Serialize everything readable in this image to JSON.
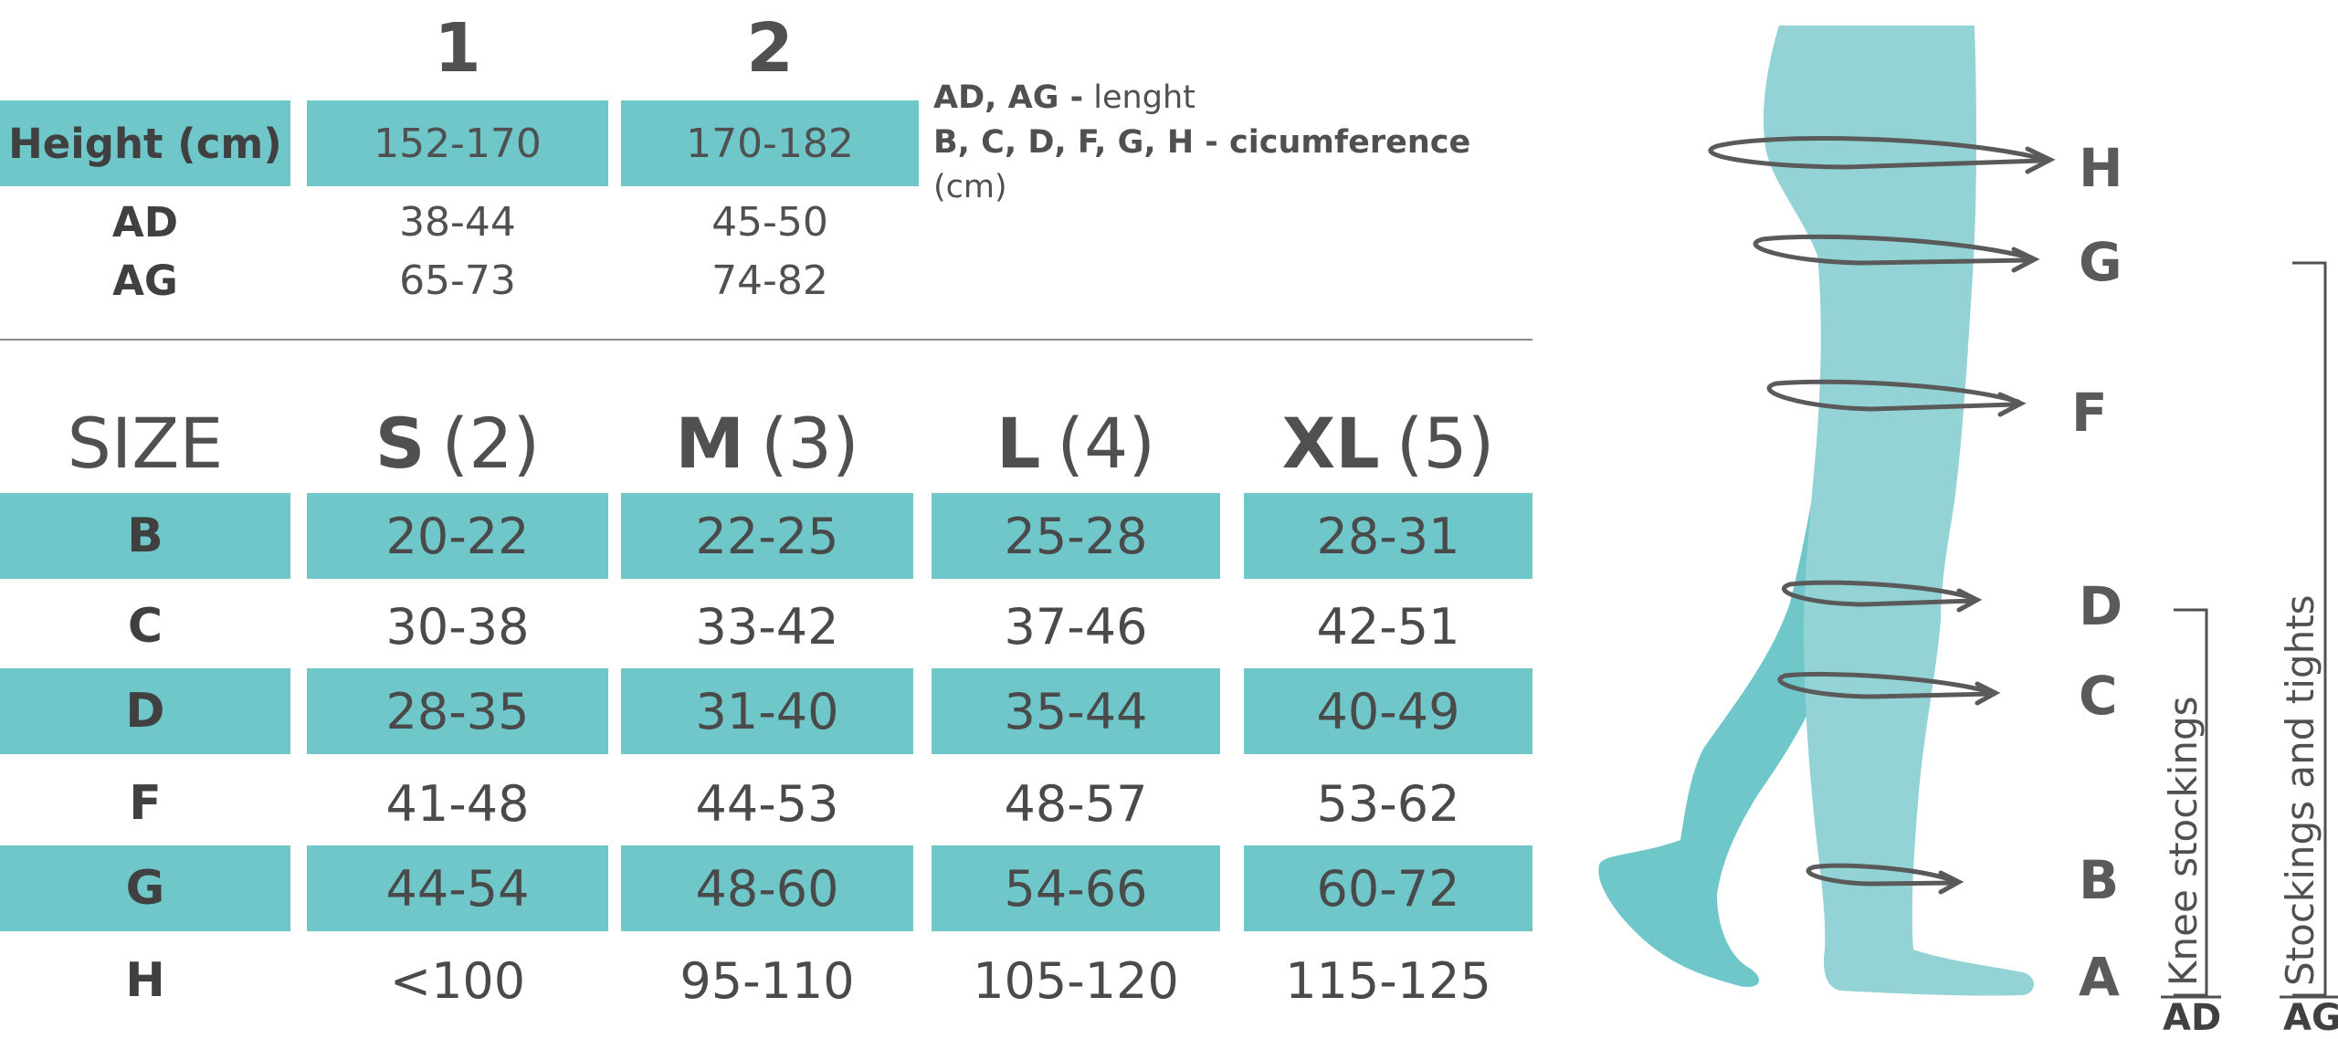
{
  "height_table": {
    "columns": [
      "1",
      "2"
    ],
    "row_label": "Height (cm)",
    "height_values": [
      "152-170",
      "170-182"
    ],
    "rows": [
      {
        "label": "AD",
        "values": [
          "38-44",
          "45-50"
        ]
      },
      {
        "label": "AG",
        "values": [
          "65-73",
          "74-82"
        ]
      }
    ]
  },
  "legend": {
    "line1_bold": "AD, AG -",
    "line1_text": " lenght",
    "line2_bold": "B, C, D, F, G, H - cicumference",
    "line3_text": "(cm)"
  },
  "size_table": {
    "header_label": "SIZE",
    "sizes": [
      {
        "letter": "S",
        "number": "(2)"
      },
      {
        "letter": "M",
        "number": "(3)"
      },
      {
        "letter": "L",
        "number": "(4)"
      },
      {
        "letter": "XL",
        "number": "(5)"
      }
    ],
    "rows": [
      {
        "label": "B",
        "values": [
          "20-22",
          "22-25",
          "25-28",
          "28-31"
        ]
      },
      {
        "label": "C",
        "values": [
          "30-38",
          "33-42",
          "37-46",
          "42-51"
        ]
      },
      {
        "label": "D",
        "values": [
          "28-35",
          "31-40",
          "35-44",
          "40-49"
        ]
      },
      {
        "label": "F",
        "values": [
          "41-48",
          "44-53",
          "48-57",
          "53-62"
        ]
      },
      {
        "label": "G",
        "values": [
          "44-54",
          "48-60",
          "54-66",
          "60-72"
        ]
      },
      {
        "label": "H",
        "values": [
          "<100",
          "95-110",
          "105-120",
          "115-125"
        ]
      }
    ]
  },
  "figure": {
    "measure_points": [
      "H",
      "G",
      "F",
      "D",
      "C",
      "B",
      "A"
    ],
    "knee_label": "Knee stockings",
    "stockings_label": "Stockings and tights",
    "ad_label": "AD",
    "ag_label": "AG",
    "colors": {
      "front_leg": "#94d3d5",
      "back_leg": "#6fc7c9",
      "arrow": "#5a5a5a",
      "bracket": "#505050"
    }
  },
  "colors": {
    "teal": "#6fc7c9",
    "text": "#505050",
    "divider": "#8a8a8a"
  }
}
